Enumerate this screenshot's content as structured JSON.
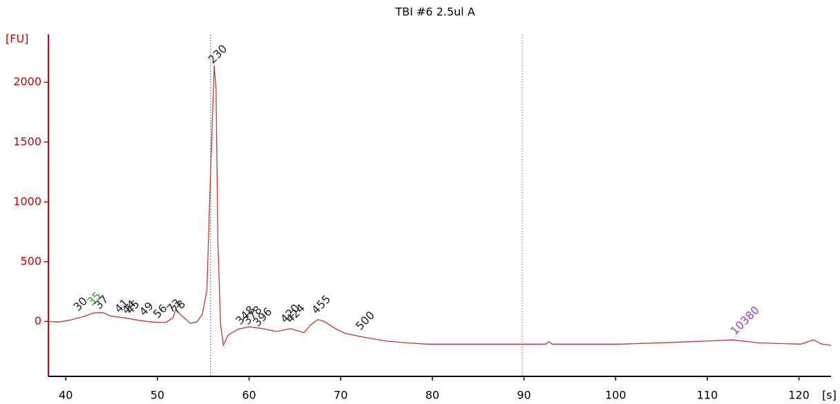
{
  "chart_data": {
    "type": "line",
    "title": "TBI #6 2.5ul A",
    "y_label": "[FU]",
    "x_label": "[s]",
    "axis_color": "#cc0000",
    "xlim": [
      38.1,
      123.5
    ],
    "ylim": [
      -460,
      2400
    ],
    "xticks": [
      40,
      50,
      60,
      70,
      80,
      90,
      100,
      110,
      120
    ],
    "yticks": [
      0,
      500,
      1000,
      1500,
      2000
    ],
    "markers": [
      55.8,
      89.8
    ],
    "x": [
      38.1,
      39.2,
      40.4,
      41.9,
      43.0,
      44.0,
      44.9,
      46.4,
      47.9,
      49.4,
      50.9,
      51.7,
      52.0,
      52.6,
      53.6,
      54.3,
      54.9,
      55.4,
      55.8,
      56.2,
      56.4,
      56.6,
      56.9,
      57.2,
      57.7,
      58.8,
      60.0,
      61.5,
      63.0,
      64.5,
      66.0,
      66.7,
      67.5,
      68.2,
      69.4,
      70.5,
      72.0,
      73.5,
      75.0,
      77.3,
      79.5,
      85.6,
      92.4,
      92.7,
      93.1,
      100.6,
      108.2,
      112.7,
      115.7,
      120.2,
      121.6,
      122.5,
      123.5
    ],
    "series": [
      {
        "color": "#c0392b",
        "values": [
          0,
          -5,
          10,
          40,
          70,
          75,
          45,
          30,
          10,
          -5,
          -10,
          30,
          100,
          50,
          -15,
          -5,
          60,
          260,
          1240,
          2140,
          1935,
          665,
          -30,
          -200,
          -115,
          -65,
          -45,
          -60,
          -85,
          -60,
          -95,
          -30,
          15,
          0,
          -60,
          -100,
          -125,
          -145,
          -165,
          -180,
          -190,
          -190,
          -190,
          -170,
          -190,
          -190,
          -170,
          -155,
          -180,
          -190,
          -155,
          -190,
          -200
        ]
      }
    ],
    "annotations": [
      {
        "text": "30",
        "x": 41.1,
        "y": 100,
        "color": "#222"
      },
      {
        "text": "35",
        "x": 42.6,
        "y": 145,
        "color": "#2e9e2e"
      },
      {
        "text": "37",
        "x": 43.4,
        "y": 115,
        "color": "#222"
      },
      {
        "text": "41",
        "x": 45.6,
        "y": 85,
        "color": "#222"
      },
      {
        "text": "44",
        "x": 46.4,
        "y": 75,
        "color": "#222"
      },
      {
        "text": "45",
        "x": 46.8,
        "y": 75,
        "color": "#222"
      },
      {
        "text": "49",
        "x": 48.3,
        "y": 60,
        "color": "#222"
      },
      {
        "text": "56",
        "x": 49.8,
        "y": 40,
        "color": "#222"
      },
      {
        "text": "73",
        "x": 51.3,
        "y": 85,
        "color": "#222"
      },
      {
        "text": "78",
        "x": 51.8,
        "y": 75,
        "color": "#222"
      },
      {
        "text": "230",
        "x": 55.8,
        "y": 2170,
        "color": "#222"
      },
      {
        "text": "348",
        "x": 58.8,
        "y": -15,
        "color": "#222"
      },
      {
        "text": "378",
        "x": 59.6,
        "y": -15,
        "color": "#222"
      },
      {
        "text": "396",
        "x": 60.7,
        "y": -30,
        "color": "#222"
      },
      {
        "text": "420",
        "x": 63.7,
        "y": 0,
        "color": "#222"
      },
      {
        "text": "424",
        "x": 64.3,
        "y": 0,
        "color": "#222"
      },
      {
        "text": "455",
        "x": 67.1,
        "y": 75,
        "color": "#222"
      },
      {
        "text": "500",
        "x": 71.9,
        "y": -60,
        "color": "#222"
      },
      {
        "text": "10380",
        "x": 112.8,
        "y": -100,
        "color": "#9b3fd4"
      }
    ]
  }
}
